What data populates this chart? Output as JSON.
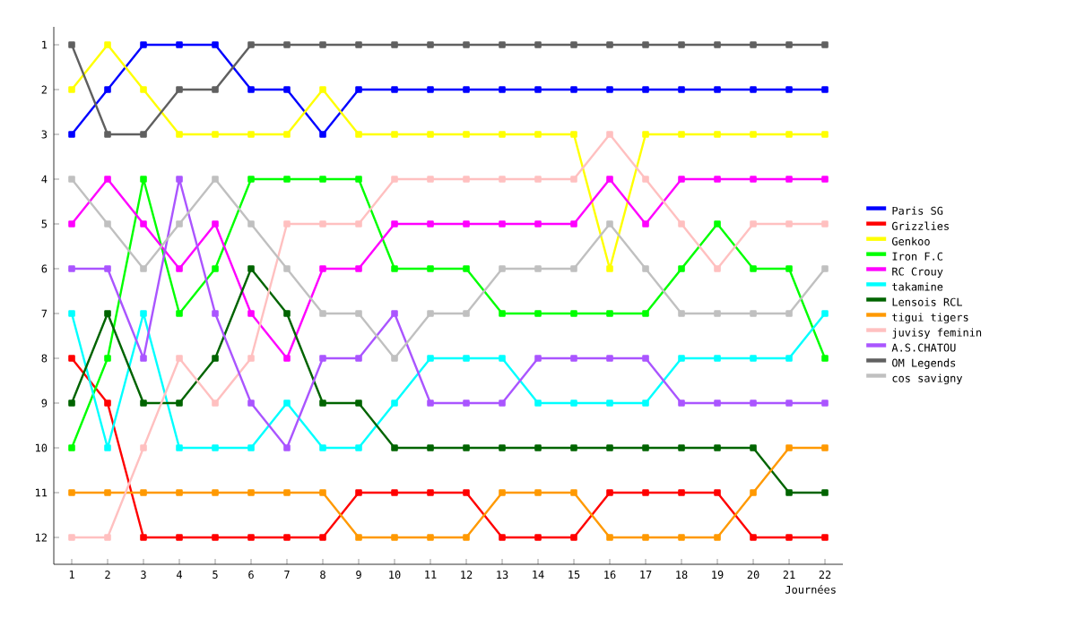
{
  "chart_data": {
    "type": "line",
    "xlabel": "Journées",
    "x": [
      1,
      2,
      3,
      4,
      5,
      6,
      7,
      8,
      9,
      10,
      11,
      12,
      13,
      14,
      15,
      16,
      17,
      18,
      19,
      20,
      21,
      22
    ],
    "xlim": [
      0.5,
      22.5
    ],
    "ylim": [
      12.6,
      0.6
    ],
    "xticks": [
      1,
      2,
      3,
      4,
      5,
      6,
      7,
      8,
      9,
      10,
      11,
      12,
      13,
      14,
      15,
      16,
      17,
      18,
      19,
      20,
      21,
      22
    ],
    "yticks": [
      1,
      2,
      3,
      4,
      5,
      6,
      7,
      8,
      9,
      10,
      11,
      12
    ],
    "legend": "right",
    "marker": "square",
    "line_style": "solid",
    "series": [
      {
        "name": "Paris SG",
        "color": "#0000ff",
        "values": [
          3,
          2,
          1,
          1,
          1,
          2,
          2,
          3,
          2,
          2,
          2,
          2,
          2,
          2,
          2,
          2,
          2,
          2,
          2,
          2,
          2,
          2
        ]
      },
      {
        "name": "Grizzlies",
        "color": "#ff0000",
        "values": [
          8,
          9,
          12,
          12,
          12,
          12,
          12,
          12,
          11,
          11,
          11,
          11,
          12,
          12,
          12,
          11,
          11,
          11,
          11,
          12,
          12,
          12
        ]
      },
      {
        "name": "Genkoo",
        "color": "#ffff00",
        "values": [
          2,
          1,
          2,
          3,
          3,
          3,
          3,
          2,
          3,
          3,
          3,
          3,
          3,
          3,
          3,
          6,
          3,
          3,
          3,
          3,
          3,
          3
        ]
      },
      {
        "name": "Iron F.C",
        "color": "#00ff00",
        "values": [
          10,
          8,
          4,
          7,
          6,
          4,
          4,
          4,
          4,
          6,
          6,
          6,
          7,
          7,
          7,
          7,
          7,
          6,
          5,
          6,
          6,
          8
        ]
      },
      {
        "name": "RC Crouy",
        "color": "#ff00ff",
        "values": [
          5,
          4,
          5,
          6,
          5,
          7,
          8,
          6,
          6,
          5,
          5,
          5,
          5,
          5,
          5,
          4,
          5,
          4,
          4,
          4,
          4,
          4
        ]
      },
      {
        "name": "takamine",
        "color": "#00ffff",
        "values": [
          7,
          10,
          7,
          10,
          10,
          10,
          9,
          10,
          10,
          9,
          8,
          8,
          8,
          9,
          9,
          9,
          9,
          8,
          8,
          8,
          8,
          7
        ]
      },
      {
        "name": "Lensois RCL",
        "color": "#006400",
        "values": [
          9,
          7,
          9,
          9,
          8,
          6,
          7,
          9,
          9,
          10,
          10,
          10,
          10,
          10,
          10,
          10,
          10,
          10,
          10,
          10,
          11,
          11
        ]
      },
      {
        "name": "tigui tigers",
        "color": "#ff9900",
        "values": [
          11,
          11,
          11,
          11,
          11,
          11,
          11,
          11,
          12,
          12,
          12,
          12,
          11,
          11,
          11,
          12,
          12,
          12,
          12,
          11,
          10,
          10
        ]
      },
      {
        "name": "juvisy feminin",
        "color": "#ffc0c0",
        "values": [
          12,
          12,
          10,
          8,
          9,
          8,
          5,
          5,
          5,
          4,
          4,
          4,
          4,
          4,
          4,
          3,
          4,
          5,
          6,
          5,
          5,
          5
        ]
      },
      {
        "name": "A.S.CHATOU",
        "color": "#aa55ff",
        "values": [
          6,
          6,
          8,
          4,
          7,
          9,
          10,
          8,
          8,
          7,
          9,
          9,
          9,
          8,
          8,
          8,
          8,
          9,
          9,
          9,
          9,
          9
        ]
      },
      {
        "name": "OM Legends",
        "color": "#606060",
        "values": [
          1,
          3,
          3,
          2,
          2,
          1,
          1,
          1,
          1,
          1,
          1,
          1,
          1,
          1,
          1,
          1,
          1,
          1,
          1,
          1,
          1,
          1
        ]
      },
      {
        "name": "cos savigny",
        "color": "#c0c0c0",
        "values": [
          4,
          5,
          6,
          5,
          4,
          5,
          6,
          7,
          7,
          8,
          7,
          7,
          6,
          6,
          6,
          5,
          6,
          7,
          7,
          7,
          7,
          6
        ]
      }
    ]
  }
}
